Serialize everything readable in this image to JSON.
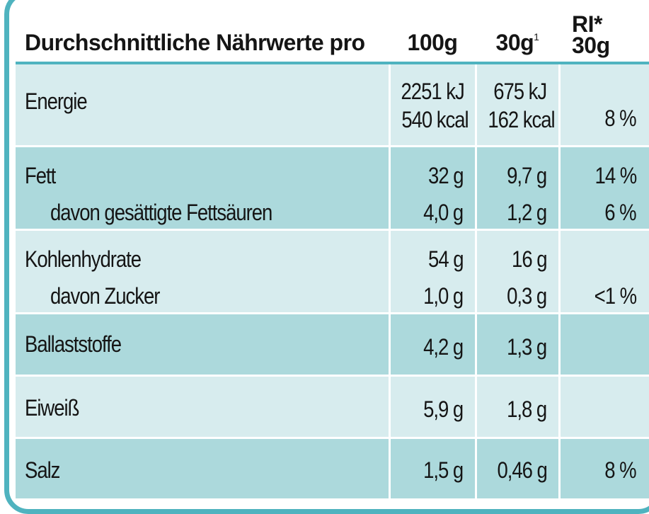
{
  "header": {
    "label": "Durchschnittliche Nährwerte pro",
    "col_100g": "100g",
    "col_30g": "30g",
    "col_30g_sup": "1",
    "col_ri_top": "RI*",
    "col_ri_bottom": "30g"
  },
  "rows": [
    {
      "label": "Energie",
      "v100_line1": "2251 kJ",
      "v100_line2": "540 kcal",
      "v30_line1": "675 kJ",
      "v30_line2": "162 kcal",
      "ri": "8 %"
    },
    {
      "label": "Fett",
      "v100": "32 g",
      "v30": "9,7 g",
      "ri": "14 %",
      "sub_label": "davon gesättigte Fettsäuren",
      "sub_v100": "4,0 g",
      "sub_v30": "1,2 g",
      "sub_ri": "6 %"
    },
    {
      "label": "Kohlenhydrate",
      "v100": "54 g",
      "v30": "16 g",
      "ri": "",
      "sub_label": "davon Zucker",
      "sub_v100": "1,0 g",
      "sub_v30": "0,3 g",
      "sub_ri": "<1 %"
    },
    {
      "label": "Ballaststoffe",
      "v100": "4,2 g",
      "v30": "1,3 g",
      "ri": ""
    },
    {
      "label": "Eiweiß",
      "v100": "5,9 g",
      "v30": "1,8 g",
      "ri": ""
    },
    {
      "label": "Salz",
      "v100": "1,5 g",
      "v30": "0,46 g",
      "ri": "8 %"
    }
  ],
  "colors": {
    "border": "#4fb3bf",
    "row_light": "#d7ecee",
    "row_dark": "#acd9dc",
    "text": "#151515"
  }
}
